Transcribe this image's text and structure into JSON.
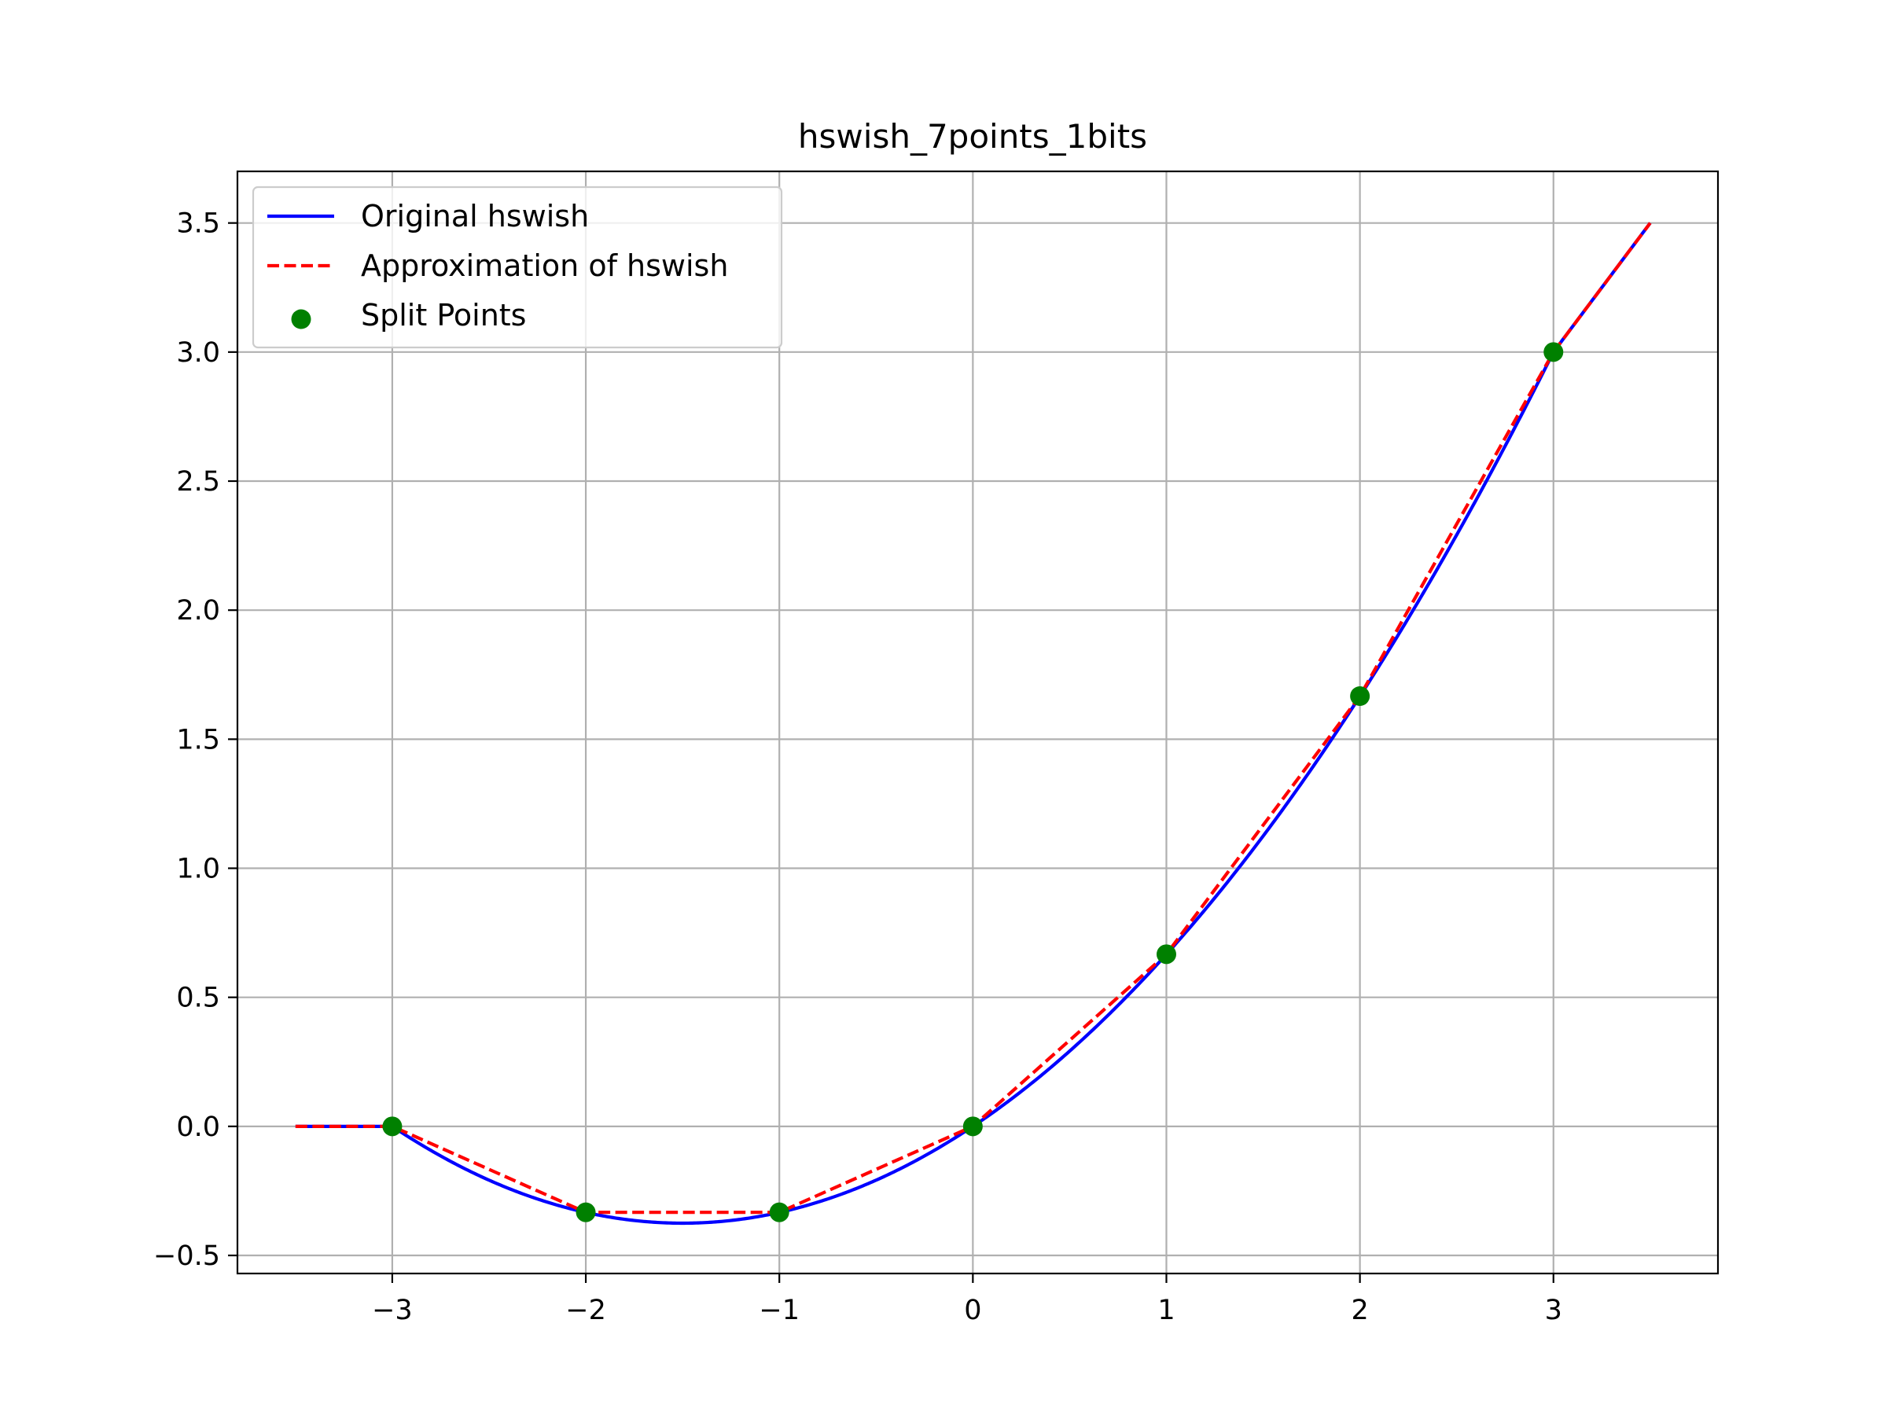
{
  "chart_data": {
    "type": "line",
    "title": "hswish_7points_1bits",
    "xlabel": "",
    "ylabel": "",
    "xlim": [
      -3.8,
      3.85
    ],
    "ylim": [
      -0.57,
      3.7
    ],
    "grid": true,
    "legend_position": "top-left",
    "x_ticks": [
      -3,
      -2,
      -1,
      0,
      1,
      2,
      3
    ],
    "x_tick_labels": [
      "−3",
      "−2",
      "−1",
      "0",
      "1",
      "2",
      "3"
    ],
    "y_ticks": [
      -0.5,
      0.0,
      0.5,
      1.0,
      1.5,
      2.0,
      2.5,
      3.0,
      3.5
    ],
    "y_tick_labels": [
      "−0.5",
      "0.0",
      "0.5",
      "1.0",
      "1.5",
      "2.0",
      "2.5",
      "3.0",
      "3.5"
    ],
    "series": [
      {
        "name": "Original hswish",
        "kind": "line",
        "style": "solid",
        "color": "#0000ff",
        "function": "hswish",
        "x_range": [
          -3.5,
          3.5
        ]
      },
      {
        "name": "Approximation of hswish",
        "kind": "line",
        "style": "dashed",
        "color": "#ff0000",
        "x": [
          -3.5,
          -3,
          -2,
          -1,
          0,
          1,
          2,
          3,
          3.5
        ],
        "y": [
          0.0,
          0.0,
          -0.333,
          -0.333,
          0.0,
          0.667,
          1.667,
          3.0,
          3.5
        ]
      },
      {
        "name": "Split Points",
        "kind": "scatter",
        "color": "#008000",
        "x": [
          -3,
          -2,
          -1,
          0,
          1,
          2,
          3
        ],
        "y": [
          0.0,
          -0.333,
          -0.333,
          0.0,
          0.667,
          1.667,
          3.0
        ]
      }
    ]
  }
}
